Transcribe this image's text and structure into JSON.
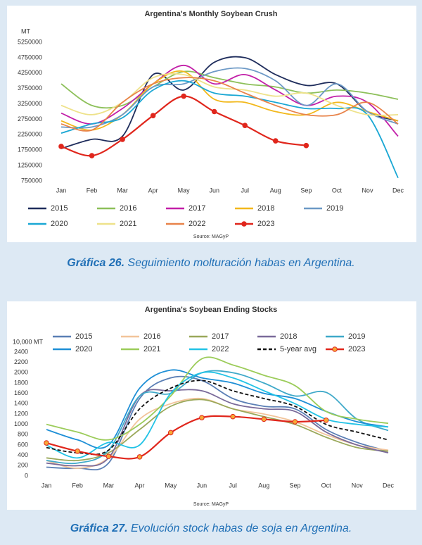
{
  "chart_data": [
    {
      "type": "line",
      "title": "Argentina's Monthly Soybean Crush",
      "y_label": "MT",
      "source": "Source: MAGyP",
      "caption_label": "Gráfica 26.",
      "caption_text": " Seguimiento molturación habas en Argentina.",
      "categories": [
        "Jan",
        "Feb",
        "Mar",
        "Apr",
        "May",
        "Jun",
        "Jul",
        "Aug",
        "Sep",
        "Oct",
        "Nov",
        "Dec"
      ],
      "ylim": [
        750000,
        5250000
      ],
      "yticks": [
        750000,
        1250000,
        1750000,
        2250000,
        2750000,
        3250000,
        3750000,
        4250000,
        4750000,
        5250000
      ],
      "legend": "bottom",
      "grid": false,
      "series": [
        {
          "name": "2015",
          "color": "#1f2d5c",
          "values": [
            1800000,
            2100000,
            2200000,
            4200000,
            3700000,
            4600000,
            4750000,
            4200000,
            3850000,
            3900000,
            3000000,
            2700000
          ]
        },
        {
          "name": "2016",
          "color": "#8dc05a",
          "values": [
            3900000,
            3200000,
            3200000,
            3800000,
            4300000,
            4100000,
            3900000,
            3800000,
            3600000,
            3700000,
            3600000,
            3400000
          ]
        },
        {
          "name": "2017",
          "color": "#c21fa8",
          "values": [
            2950000,
            2600000,
            3100000,
            3900000,
            4500000,
            3900000,
            4200000,
            3700000,
            3200000,
            3500000,
            3300000,
            2200000
          ]
        },
        {
          "name": "2018",
          "color": "#f2b81c",
          "values": [
            2700000,
            2400000,
            2900000,
            3900000,
            4300000,
            3400000,
            3300000,
            3000000,
            2900000,
            3300000,
            3000000,
            2700000
          ]
        },
        {
          "name": "2019",
          "color": "#6c99c6",
          "values": [
            2500000,
            2500000,
            2900000,
            3800000,
            3900000,
            4300000,
            4400000,
            4000000,
            3200000,
            3900000,
            3000000,
            2600000
          ]
        },
        {
          "name": "2020",
          "color": "#1aa7d4",
          "values": [
            2300000,
            2600000,
            2800000,
            3700000,
            4000000,
            3600000,
            3500000,
            3300000,
            3100000,
            3100000,
            2900000,
            850000
          ]
        },
        {
          "name": "2021",
          "color": "#eee28a",
          "values": [
            3200000,
            2900000,
            3300000,
            4100000,
            4200000,
            3800000,
            3700000,
            3500000,
            3600000,
            3200000,
            2900000,
            2900000
          ]
        },
        {
          "name": "2022",
          "color": "#e8834a",
          "values": [
            2600000,
            2400000,
            3300000,
            3900000,
            4100000,
            4000000,
            3600000,
            3200000,
            2900000,
            2900000,
            3300000,
            2600000
          ]
        },
        {
          "name": "2023",
          "color": "#e0261c",
          "markers": true,
          "marker_color": "#e0261c",
          "values": [
            1870000,
            1570000,
            2100000,
            2870000,
            3500000,
            3000000,
            2550000,
            2050000,
            1900000,
            null,
            null,
            null
          ]
        }
      ]
    },
    {
      "type": "line",
      "title": "Argentina's Soybean Ending Stocks",
      "y_label": "10,000 MT",
      "source": "Source: MAGyP",
      "caption_label": "Gráfica 27.",
      "caption_text": " Evolución stock habas de soja en Argentina.",
      "categories": [
        "Jan",
        "Feb",
        "Mar",
        "Apr",
        "May",
        "Jun",
        "Jul",
        "Aug",
        "Sep",
        "Oct",
        "Nov",
        "Dec"
      ],
      "ylim": [
        0,
        2400
      ],
      "yticks": [
        0,
        200,
        400,
        600,
        800,
        1000,
        1200,
        1400,
        1600,
        1800,
        2000,
        2200,
        2400
      ],
      "legend": "top",
      "grid": false,
      "series": [
        {
          "name": "2015",
          "color": "#5b7fb5",
          "values": [
            170,
            150,
            250,
            1500,
            1900,
            1850,
            1500,
            1350,
            1300,
            900,
            650,
            480
          ]
        },
        {
          "name": "2016",
          "color": "#f2c49a",
          "values": [
            300,
            150,
            350,
            1100,
            1400,
            1500,
            1300,
            1200,
            1050,
            800,
            600,
            500
          ]
        },
        {
          "name": "2017",
          "color": "#9aa85a",
          "values": [
            350,
            300,
            450,
            900,
            1350,
            1480,
            1300,
            1150,
            1000,
            750,
            550,
            480
          ]
        },
        {
          "name": "2018",
          "color": "#7a6a9a",
          "values": [
            250,
            200,
            350,
            1550,
            1650,
            1650,
            1400,
            1300,
            1250,
            850,
            600,
            450
          ]
        },
        {
          "name": "2019",
          "color": "#3fa9c9",
          "values": [
            300,
            250,
            500,
            1550,
            1600,
            2000,
            2000,
            1800,
            1550,
            1620,
            1100,
            880
          ]
        },
        {
          "name": "2020",
          "color": "#1e8fd6",
          "values": [
            900,
            700,
            600,
            1700,
            2050,
            1900,
            1800,
            1600,
            1500,
            1250,
            1050,
            950
          ]
        },
        {
          "name": "2021",
          "color": "#9ccc5a",
          "values": [
            1000,
            850,
            700,
            1000,
            1550,
            2270,
            2150,
            1950,
            1750,
            1250,
            1100,
            1020
          ]
        },
        {
          "name": "2022",
          "color": "#22c3e6",
          "values": [
            600,
            350,
            650,
            600,
            1600,
            2000,
            1900,
            1650,
            1400,
            1100,
            1000,
            950
          ]
        },
        {
          "name": "5-year avg",
          "color": "#111111",
          "dash": true,
          "values": [
            550,
            450,
            500,
            1300,
            1700,
            1850,
            1650,
            1500,
            1350,
            1000,
            850,
            700
          ]
        },
        {
          "name": "2023",
          "color": "#e0261c",
          "markers": true,
          "marker_color": "#f7a937",
          "values": [
            640,
            480,
            380,
            370,
            840,
            1130,
            1150,
            1100,
            1050,
            1080,
            null,
            null
          ]
        }
      ]
    }
  ]
}
